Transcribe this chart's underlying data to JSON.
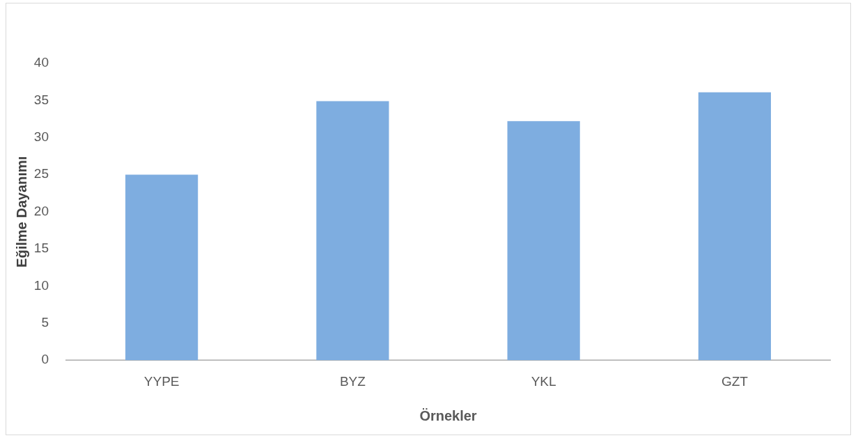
{
  "chart_data": {
    "type": "bar",
    "xlabel": "Örnekler",
    "ylabel": "Eğilme Dayanımı",
    "categories": [
      "YYPE",
      "BYZ",
      "YKL",
      "GZT"
    ],
    "values": [
      25.0,
      34.9,
      32.2,
      36.1
    ],
    "color": "#7eade0",
    "ylim": [
      0,
      40
    ],
    "yticks": [
      0,
      5,
      10,
      15,
      20,
      25,
      30,
      35,
      40
    ]
  }
}
